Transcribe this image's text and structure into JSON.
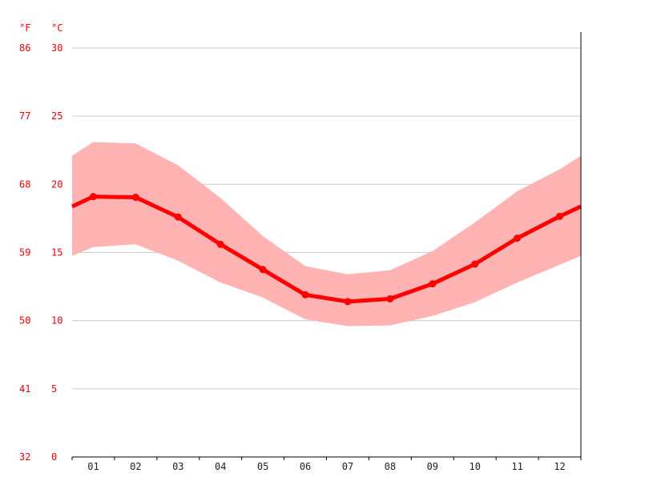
{
  "chart_data": {
    "type": "area",
    "units": {
      "fahrenheit": "°F",
      "celsius": "°C"
    },
    "categories": [
      "01",
      "02",
      "03",
      "04",
      "05",
      "06",
      "07",
      "08",
      "09",
      "10",
      "11",
      "12"
    ],
    "y_ticks_celsius": [
      "0",
      "5",
      "10",
      "15",
      "20",
      "25",
      "30"
    ],
    "y_ticks_fahrenheit": [
      "32",
      "41",
      "50",
      "59",
      "68",
      "77",
      "86"
    ],
    "ylim": [
      0,
      30
    ],
    "grid": true,
    "series": [
      {
        "kind": "mean",
        "values": [
          19.1,
          19.05,
          17.6,
          15.6,
          13.75,
          11.9,
          11.4,
          11.6,
          12.7,
          14.15,
          16.05,
          17.65
        ]
      },
      {
        "kind": "max",
        "values": [
          23.1,
          23.0,
          21.4,
          19.0,
          16.2,
          14.0,
          13.4,
          13.7,
          15.1,
          17.2,
          19.5,
          21.1
        ]
      },
      {
        "kind": "min",
        "values": [
          15.4,
          15.6,
          14.4,
          12.8,
          11.7,
          10.1,
          9.6,
          9.65,
          10.35,
          11.35,
          12.8,
          14.1
        ]
      }
    ],
    "colors": {
      "mean": "#ff0000",
      "range": "#ffb3b3",
      "axis_text": "#e8000b"
    }
  }
}
